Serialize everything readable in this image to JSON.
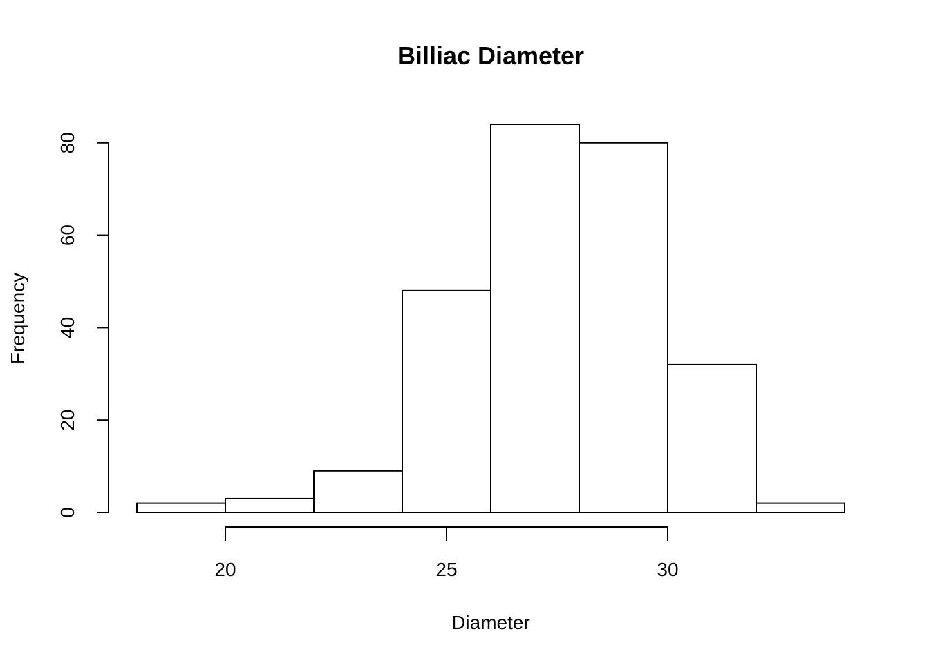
{
  "chart_data": {
    "type": "bar",
    "title": "Billiac Diameter",
    "xlabel": "Diameter",
    "ylabel": "Frequency",
    "bins": [
      {
        "start": 18,
        "end": 20,
        "count": 2
      },
      {
        "start": 20,
        "end": 22,
        "count": 3
      },
      {
        "start": 22,
        "end": 24,
        "count": 9
      },
      {
        "start": 24,
        "end": 26,
        "count": 48
      },
      {
        "start": 26,
        "end": 28,
        "count": 84
      },
      {
        "start": 28,
        "end": 30,
        "count": 80
      },
      {
        "start": 30,
        "end": 32,
        "count": 32
      },
      {
        "start": 32,
        "end": 34,
        "count": 2
      }
    ],
    "xlim": [
      18,
      34
    ],
    "ylim": [
      0,
      84
    ],
    "x_ticks": [
      20,
      25,
      30
    ],
    "y_ticks": [
      0,
      20,
      40,
      60,
      80
    ],
    "grid": false,
    "legend": "none"
  }
}
